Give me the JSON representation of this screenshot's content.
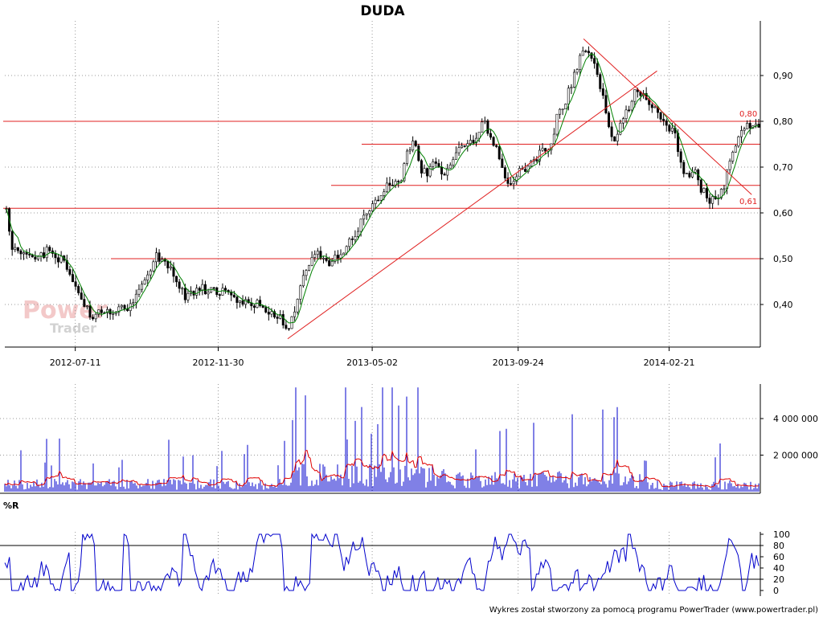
{
  "chart_data": [
    {
      "type": "candlestick",
      "title": "DUDA",
      "x_ticks": [
        "2012-07-11",
        "2012-11-30",
        "2013-05-02",
        "2013-09-24",
        "2014-02-21"
      ],
      "y_ticks": [
        "0,40",
        "0,50",
        "0,60",
        "0,70",
        "0,80",
        "0,90"
      ],
      "ylim": [
        0.32,
        0.99
      ],
      "grid": true,
      "date_start": "2012-05-02",
      "date_end": "2014-05-21",
      "price_points": [
        [
          "2012-05-02",
          0.665
        ],
        [
          "2012-05-04",
          0.6
        ],
        [
          "2012-05-10",
          0.52
        ],
        [
          "2012-05-18",
          0.51
        ],
        [
          "2012-05-28",
          0.505
        ],
        [
          "2012-06-06",
          0.5
        ],
        [
          "2012-06-14",
          0.52
        ],
        [
          "2012-06-22",
          0.505
        ],
        [
          "2012-07-01",
          0.49
        ],
        [
          "2012-07-11",
          0.44
        ],
        [
          "2012-07-19",
          0.4
        ],
        [
          "2012-07-27",
          0.375
        ],
        [
          "2012-08-06",
          0.385
        ],
        [
          "2012-08-16",
          0.38
        ],
        [
          "2012-08-26",
          0.39
        ],
        [
          "2012-09-05",
          0.4
        ],
        [
          "2012-09-14",
          0.44
        ],
        [
          "2012-09-23",
          0.48
        ],
        [
          "2012-09-30",
          0.505
        ],
        [
          "2012-10-06",
          0.5
        ],
        [
          "2012-10-14",
          0.48
        ],
        [
          "2012-10-22",
          0.44
        ],
        [
          "2012-10-30",
          0.415
        ],
        [
          "2012-11-07",
          0.43
        ],
        [
          "2012-11-15",
          0.435
        ],
        [
          "2012-11-24",
          0.425
        ],
        [
          "2012-11-30",
          0.43
        ],
        [
          "2012-12-09",
          0.42
        ],
        [
          "2012-12-19",
          0.405
        ],
        [
          "2012-12-29",
          0.405
        ],
        [
          "2013-01-08",
          0.4
        ],
        [
          "2013-01-16",
          0.385
        ],
        [
          "2013-01-24",
          0.38
        ],
        [
          "2013-02-01",
          0.37
        ],
        [
          "2013-02-07",
          0.33
        ],
        [
          "2013-02-12",
          0.37
        ],
        [
          "2013-02-18",
          0.42
        ],
        [
          "2013-02-24",
          0.47
        ],
        [
          "2013-03-04",
          0.5
        ],
        [
          "2013-03-12",
          0.51
        ],
        [
          "2013-03-20",
          0.49
        ],
        [
          "2013-03-28",
          0.5
        ],
        [
          "2013-04-05",
          0.52
        ],
        [
          "2013-04-12",
          0.54
        ],
        [
          "2013-04-20",
          0.58
        ],
        [
          "2013-04-28",
          0.6
        ],
        [
          "2013-05-06",
          0.63
        ],
        [
          "2013-05-14",
          0.65
        ],
        [
          "2013-05-22",
          0.67
        ],
        [
          "2013-05-30",
          0.66
        ],
        [
          "2013-06-05",
          0.73
        ],
        [
          "2013-06-12",
          0.76
        ],
        [
          "2013-06-18",
          0.7
        ],
        [
          "2013-06-26",
          0.69
        ],
        [
          "2013-07-04",
          0.71
        ],
        [
          "2013-07-12",
          0.69
        ],
        [
          "2013-07-20",
          0.7
        ],
        [
          "2013-07-28",
          0.74
        ],
        [
          "2013-08-05",
          0.76
        ],
        [
          "2013-08-13",
          0.75
        ],
        [
          "2013-08-20",
          0.8
        ],
        [
          "2013-08-28",
          0.77
        ],
        [
          "2013-09-05",
          0.73
        ],
        [
          "2013-09-11",
          0.68
        ],
        [
          "2013-09-18",
          0.65
        ],
        [
          "2013-09-24",
          0.69
        ],
        [
          "2013-10-02",
          0.7
        ],
        [
          "2013-10-10",
          0.72
        ],
        [
          "2013-10-18",
          0.73
        ],
        [
          "2013-10-26",
          0.75
        ],
        [
          "2013-11-03",
          0.82
        ],
        [
          "2013-11-11",
          0.85
        ],
        [
          "2013-11-19",
          0.9
        ],
        [
          "2013-11-27",
          0.95
        ],
        [
          "2013-12-01",
          0.96
        ],
        [
          "2013-12-09",
          0.92
        ],
        [
          "2013-12-17",
          0.85
        ],
        [
          "2013-12-23",
          0.79
        ],
        [
          "2013-12-29",
          0.76
        ],
        [
          "2014-01-06",
          0.8
        ],
        [
          "2014-01-13",
          0.84
        ],
        [
          "2014-01-20",
          0.87
        ],
        [
          "2014-01-26",
          0.86
        ],
        [
          "2014-02-03",
          0.84
        ],
        [
          "2014-02-11",
          0.81
        ],
        [
          "2014-02-21",
          0.79
        ],
        [
          "2014-02-28",
          0.76
        ],
        [
          "2014-03-06",
          0.7
        ],
        [
          "2014-03-12",
          0.68
        ],
        [
          "2014-03-18",
          0.69
        ],
        [
          "2014-03-25",
          0.65
        ],
        [
          "2014-04-02",
          0.63
        ],
        [
          "2014-04-10",
          0.63
        ],
        [
          "2014-04-16",
          0.65
        ],
        [
          "2014-04-22",
          0.71
        ],
        [
          "2014-04-30",
          0.75
        ],
        [
          "2014-05-06",
          0.79
        ],
        [
          "2014-05-12",
          0.79
        ],
        [
          "2014-05-21",
          0.78
        ]
      ],
      "hlines": [
        0.8,
        0.75,
        0.66,
        0.61,
        0.5
      ],
      "level_labels": [
        "0,80",
        "0,61"
      ],
      "trendlines": [
        [
          [
            "2013-02-07",
            0.325
          ],
          [
            "2014-02-09",
            0.91
          ]
        ],
        [
          [
            "2013-11-28",
            0.98
          ],
          [
            "2014-05-14",
            0.64
          ]
        ]
      ]
    },
    {
      "type": "bar",
      "y_ticks": [
        "2 000 000",
        "4 000 000"
      ],
      "ylim": [
        0,
        5800000
      ],
      "series": [
        {
          "values": "volume"
        },
        {
          "values": "moving-average"
        }
      ]
    },
    {
      "type": "line",
      "title": "%R",
      "y_ticks": [
        "0",
        "20",
        "40",
        "60",
        "80",
        "100"
      ],
      "ylim": [
        0,
        100
      ],
      "hlines": [
        20,
        80
      ]
    }
  ],
  "watermark": {
    "line1": "Power",
    "line2": "Trader"
  },
  "footer": "Wykres został stworzony za pomocą programu PowerTrader (www.powertrader.pl)",
  "colors": {
    "up": "#008000",
    "down": "#000000",
    "level": "#e02020",
    "volume": "#0000cc",
    "williams": "#0000cc",
    "ma": "#e00000"
  }
}
